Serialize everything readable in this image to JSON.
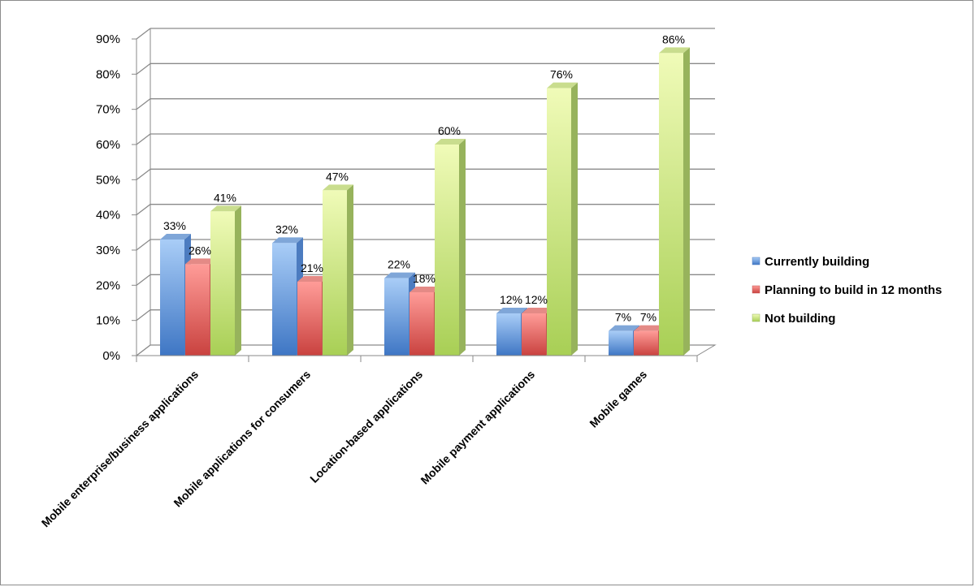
{
  "chart_data": {
    "type": "bar",
    "categories": [
      "Mobile enterprise/business applications",
      "Mobile applications for consumers",
      "Location-based applications",
      "Mobile payment applications",
      "Mobile games"
    ],
    "series": [
      {
        "name": "Currently building",
        "values": [
          33,
          32,
          22,
          12,
          7
        ],
        "color": "#5b9bd5"
      },
      {
        "name": "Planning to build in 12 months",
        "values": [
          26,
          21,
          18,
          12,
          7
        ],
        "color": "#e8605f"
      },
      {
        "name": "Not building",
        "values": [
          41,
          47,
          60,
          76,
          86
        ],
        "color": "#b8d97a"
      }
    ],
    "data_labels": [
      [
        "33%",
        "32%",
        "22%",
        "12%",
        "7%"
      ],
      [
        "26%",
        "21%",
        "18%",
        "12%",
        "7%"
      ],
      [
        "41%",
        "47%",
        "60%",
        "76%",
        "86%"
      ]
    ],
    "ylim": [
      0,
      90
    ],
    "y_ticks": [
      "0%",
      "10%",
      "20%",
      "30%",
      "40%",
      "50%",
      "60%",
      "70%",
      "80%",
      "90%"
    ],
    "y_tick_values": [
      0,
      10,
      20,
      30,
      40,
      50,
      60,
      70,
      80,
      90
    ],
    "title": "",
    "xlabel": "",
    "ylabel": "",
    "grid": true,
    "legend_position": "right",
    "style": "3d-clustered-column"
  }
}
